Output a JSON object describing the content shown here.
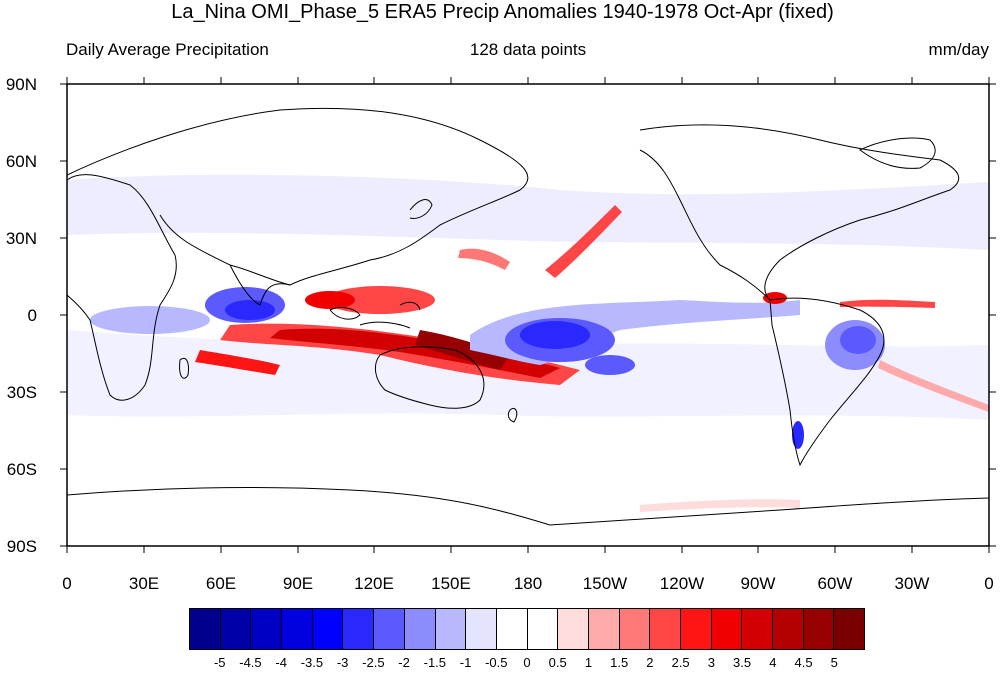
{
  "title": "La_Nina OMI_Phase_5 ERA5 Precip Anomalies 1940-1978 Oct-Apr (fixed)",
  "subtitle_left": "Daily Average Precipitation",
  "subtitle_center": "128 data points",
  "subtitle_right": "mm/day",
  "lat_labels": [
    "90N",
    "60N",
    "30N",
    "0",
    "30S",
    "60S",
    "90S"
  ],
  "lon_labels": [
    "0",
    "30E",
    "60E",
    "90E",
    "120E",
    "150E",
    "180",
    "150W",
    "120W",
    "90W",
    "60W",
    "30W",
    "0"
  ],
  "colorbar": {
    "labels": [
      "-5",
      "-4.5",
      "-4",
      "-3.5",
      "-3",
      "-2.5",
      "-2",
      "-1.5",
      "-1",
      "-0.5",
      "0",
      "0.5",
      "1",
      "1.5",
      "2",
      "2.5",
      "3",
      "3.5",
      "4",
      "4.5",
      "5"
    ],
    "colors": [
      "#00008c",
      "#0000a8",
      "#0000c4",
      "#0000e0",
      "#0000ff",
      "#2828ff",
      "#5a5aff",
      "#8c8cff",
      "#b8b8ff",
      "#e4e4ff",
      "#ffffff",
      "#ffffff",
      "#ffdcdc",
      "#ffaaaa",
      "#ff7878",
      "#ff4646",
      "#ff1414",
      "#f00000",
      "#d20000",
      "#b40000",
      "#960000",
      "#780000"
    ]
  },
  "map": {
    "projection": "cylindrical-equidistant",
    "center_lon": 180,
    "land_color": "#ffffff",
    "coast_color": "#000000"
  }
}
